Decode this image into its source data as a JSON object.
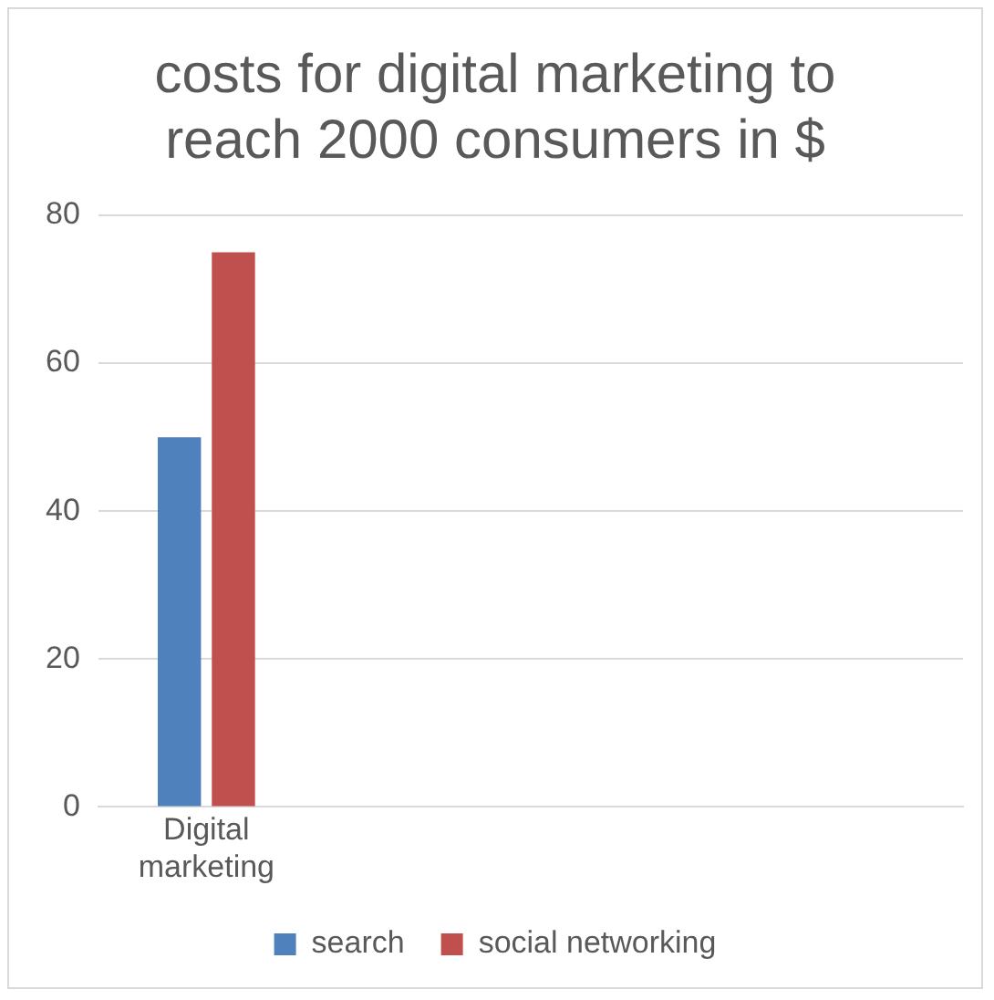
{
  "chart_data": {
    "type": "bar",
    "title": "costs for digital marketing to reach 2000 consumers in $",
    "categories": [
      "Digital marketing",
      null,
      null,
      null
    ],
    "series": [
      {
        "name": "search",
        "color": "#4f81bd",
        "values": [
          50,
          null,
          null,
          null
        ]
      },
      {
        "name": "social networking",
        "color": "#c0504d",
        "values": [
          75,
          null,
          null,
          null
        ]
      }
    ],
    "ylim": [
      0,
      80
    ],
    "yticks": [
      0,
      20,
      40,
      60,
      80
    ],
    "grid": "y",
    "legend": "bottom"
  }
}
